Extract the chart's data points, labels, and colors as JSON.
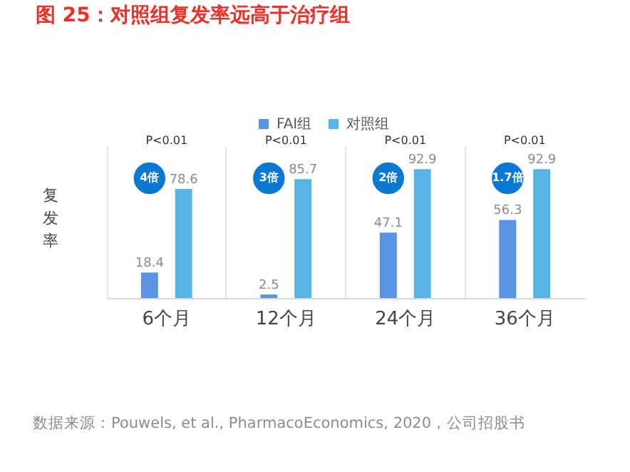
{
  "chart_data": {
    "type": "bar",
    "title": "图 25：对照组复发率远高于治疗组",
    "ylabel": "复发率",
    "categories": [
      "6个月",
      "12个月",
      "24个月",
      "36个月"
    ],
    "series": [
      {
        "name": "FAI组",
        "color": "#5b93e3",
        "values": [
          18.4,
          2.5,
          47.1,
          56.3
        ]
      },
      {
        "name": "对照组",
        "color": "#56b5e4",
        "values": [
          78.6,
          85.7,
          92.9,
          92.9
        ]
      }
    ],
    "ylim": [
      0,
      110
    ],
    "tick_labels": "x",
    "data_labels": true,
    "grid": "x",
    "legend": "top",
    "annotations": [
      "P<0.01",
      "P<0.01",
      "P<0.01",
      "P<0.01",
      "4倍",
      "3倍",
      "2倍",
      "1.7倍",
      "数据来源：Pouwels, et al., PharmacoEconomics, 2020，公司招股书"
    ]
  }
}
